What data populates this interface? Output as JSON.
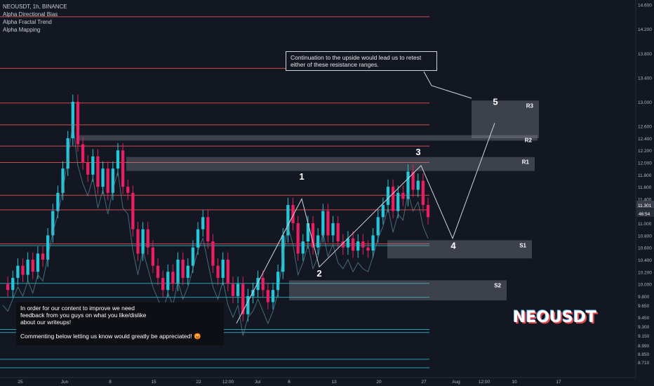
{
  "header": {
    "symbol_line": "NEOUSDT, 1h, BINANCE",
    "indicators": [
      "Alpha Directional Bias",
      "Alpha Fractal Trend",
      "Alpha Mapping"
    ]
  },
  "chart_data": {
    "type": "line",
    "title": "NEOUSDT, 1h, BINANCE",
    "ylim": [
      8.55,
      14.63
    ],
    "price_axis_ticks": [
      "14.600",
      "14.200",
      "13.800",
      "13.400",
      "13.000",
      "12.600",
      "12.400",
      "12.200",
      "12.000",
      "11.800",
      "11.600",
      "11.400",
      "11.200",
      "11.000",
      "10.800",
      "10.600",
      "10.400",
      "10.200",
      "10.000",
      "9.800",
      "9.650",
      "9.450",
      "9.300",
      "9.150",
      "8.990",
      "8.850",
      "8.710"
    ],
    "time_axis_labels": [
      "25",
      "Jun",
      "8",
      "15",
      "22",
      "12:00",
      "Jul",
      "6",
      "13",
      "20",
      "27",
      "Aug",
      "12:00",
      "10",
      "17"
    ],
    "current_price_label": "11.301",
    "countdown_label": "46:54",
    "price_series": [
      [
        0,
        10.0
      ],
      [
        1,
        9.9
      ],
      [
        2,
        10.1
      ],
      [
        3,
        10.3
      ],
      [
        4,
        10.15
      ],
      [
        5,
        10.4
      ],
      [
        6,
        10.2
      ],
      [
        7,
        10.5
      ],
      [
        8,
        10.4
      ],
      [
        9,
        10.8
      ],
      [
        10,
        11.2
      ],
      [
        11,
        11.5
      ],
      [
        12,
        11.9
      ],
      [
        13,
        12.4
      ],
      [
        14,
        13.0
      ],
      [
        15,
        12.3
      ],
      [
        16,
        12.0
      ],
      [
        17,
        11.8
      ],
      [
        18,
        12.1
      ],
      [
        19,
        11.6
      ],
      [
        20,
        11.9
      ],
      [
        21,
        11.5
      ],
      [
        22,
        11.9
      ],
      [
        23,
        12.2
      ],
      [
        24,
        11.6
      ],
      [
        25,
        11.5
      ],
      [
        26,
        10.9
      ],
      [
        27,
        10.5
      ],
      [
        28,
        10.9
      ],
      [
        29,
        10.6
      ],
      [
        30,
        10.3
      ],
      [
        31,
        10.1
      ],
      [
        32,
        9.9
      ],
      [
        33,
        10.2
      ],
      [
        34,
        10.0
      ],
      [
        35,
        10.4
      ],
      [
        36,
        10.1
      ],
      [
        37,
        10.3
      ],
      [
        38,
        10.6
      ],
      [
        39,
        10.9
      ],
      [
        40,
        11.1
      ],
      [
        41,
        10.7
      ],
      [
        42,
        10.3
      ],
      [
        43,
        10.1
      ],
      [
        44,
        10.4
      ],
      [
        45,
        10.0
      ],
      [
        46,
        9.8
      ],
      [
        47,
        10.0
      ],
      [
        48,
        9.5
      ],
      [
        49,
        9.8
      ],
      [
        50,
        9.9
      ],
      [
        51,
        10.1
      ],
      [
        52,
        9.9
      ],
      [
        53,
        9.7
      ],
      [
        54,
        9.9
      ],
      [
        55,
        10.2
      ],
      [
        56,
        10.8
      ],
      [
        57,
        11.3
      ],
      [
        58,
        11.0
      ],
      [
        59,
        10.5
      ],
      [
        60,
        10.7
      ],
      [
        61,
        11.0
      ],
      [
        62,
        10.6
      ],
      [
        63,
        10.8
      ],
      [
        64,
        11.2
      ],
      [
        65,
        10.8
      ],
      [
        66,
        11.0
      ],
      [
        67,
        10.7
      ],
      [
        68,
        10.6
      ],
      [
        69,
        10.75
      ],
      [
        70,
        10.55
      ],
      [
        71,
        10.7
      ],
      [
        72,
        10.6
      ],
      [
        73,
        10.55
      ],
      [
        74,
        10.8
      ],
      [
        75,
        11.1
      ],
      [
        76,
        11.3
      ],
      [
        77,
        11.6
      ],
      [
        78,
        11.2
      ],
      [
        79,
        11.5
      ],
      [
        80,
        11.4
      ],
      [
        81,
        11.85
      ],
      [
        82,
        11.55
      ],
      [
        83,
        11.7
      ],
      [
        84,
        11.3
      ],
      [
        85,
        11.1
      ]
    ],
    "wave_labels": [
      {
        "label": "1",
        "price": 11.72
      },
      {
        "label": "2",
        "price": 10.12
      },
      {
        "label": "3",
        "price": 12.12
      },
      {
        "label": "4",
        "price": 10.58
      },
      {
        "label": "5",
        "price": 12.95
      }
    ],
    "projection_path_prices": [
      9.35,
      11.4,
      10.28,
      11.95,
      10.75,
      12.65
    ],
    "zones": [
      {
        "name": "R3",
        "top": 13.02,
        "bottom": 12.4,
        "color": "#9598a1"
      },
      {
        "name": "R2",
        "top": 12.45,
        "bottom": 12.36,
        "color": "#9598a1"
      },
      {
        "name": "R1",
        "top": 12.09,
        "bottom": 11.86,
        "color": "#9598a1"
      },
      {
        "name": "S1",
        "top": 10.72,
        "bottom": 10.42,
        "color": "#9598a1"
      },
      {
        "name": "S2",
        "top": 10.06,
        "bottom": 9.73,
        "color": "#9598a1"
      }
    ],
    "resistance_lines": [
      14.4,
      13.55,
      12.98,
      12.62,
      12.27,
      12.0,
      11.46,
      11.22,
      10.66
    ],
    "support_lines": [
      10.63,
      10.01,
      9.78,
      9.25,
      9.2,
      8.76,
      8.62
    ],
    "colors": {
      "background": "#131722",
      "bull": "#26c6da",
      "bear": "#e91e63",
      "resistance": "#f05454",
      "support": "#26c6da",
      "text": "#b2b5be"
    }
  },
  "annotations": {
    "callout_lines": [
      "Continuation to the upside would lead us to retest",
      "either of these resistance ranges."
    ],
    "feedback_lines": [
      "In order for our content to improve we need",
      "feedback from you guys on what you like/dislike",
      "about our writeups!",
      "",
      "Commenting below letting us know would greatly be appreciated! 😡"
    ],
    "ticker_watermark": "NEOUSDT"
  }
}
